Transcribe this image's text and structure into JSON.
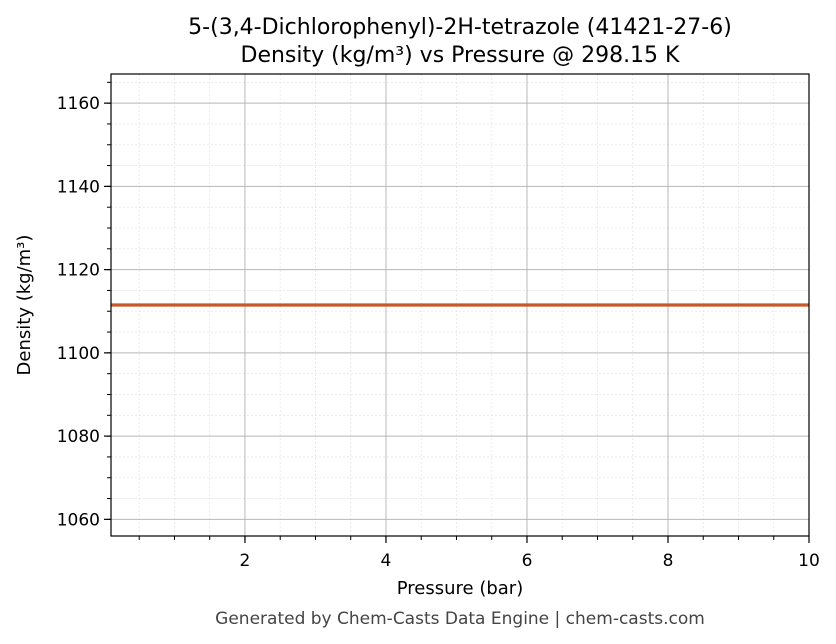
{
  "chart_data": {
    "type": "line",
    "title_line1": "5-(3,4-Dichlorophenyl)-2H-tetrazole (41421-27-6)",
    "title_line2": "Density (kg/m³) vs Pressure @ 298.15 K",
    "xlabel": "Pressure (bar)",
    "ylabel": "Density (kg/m³)",
    "xlim": [
      0.1,
      10
    ],
    "ylim": [
      1056,
      1167
    ],
    "x_ticks": [
      2,
      4,
      6,
      8,
      10
    ],
    "y_ticks": [
      1060,
      1080,
      1100,
      1120,
      1140,
      1160
    ],
    "x_minor_step": 0.5,
    "y_minor_step": 5,
    "grid": true,
    "series": [
      {
        "color": "#c8572a",
        "x": [
          0.1,
          10
        ],
        "y": [
          1111.5,
          1111.5
        ]
      }
    ]
  },
  "footer": "Generated by Chem-Casts Data Engine | chem-casts.com"
}
